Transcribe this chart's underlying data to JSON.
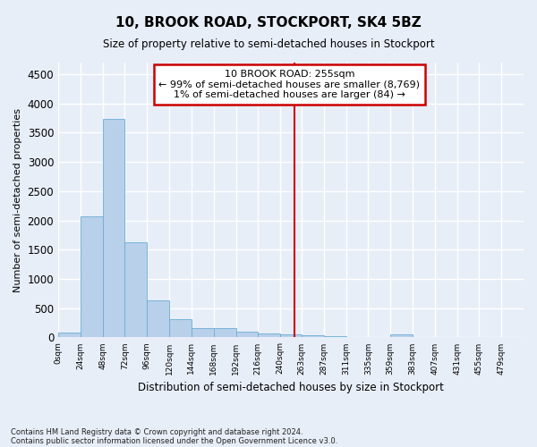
{
  "title": "10, BROOK ROAD, STOCKPORT, SK4 5BZ",
  "subtitle": "Size of property relative to semi-detached houses in Stockport",
  "xlabel": "Distribution of semi-detached houses by size in Stockport",
  "ylabel": "Number of semi-detached properties",
  "footnote1": "Contains HM Land Registry data © Crown copyright and database right 2024.",
  "footnote2": "Contains public sector information licensed under the Open Government Licence v3.0.",
  "bar_values": [
    90,
    2070,
    3730,
    1620,
    640,
    305,
    155,
    155,
    100,
    70,
    55,
    30,
    20,
    0,
    0,
    50,
    0,
    0,
    0,
    0
  ],
  "bin_edges": [
    0,
    24,
    48,
    72,
    96,
    120,
    144,
    168,
    192,
    216,
    240,
    263,
    287,
    311,
    335,
    359,
    383,
    407,
    431,
    455,
    479
  ],
  "bin_labels": [
    "0sqm",
    "24sqm",
    "48sqm",
    "72sqm",
    "96sqm",
    "120sqm",
    "144sqm",
    "168sqm",
    "192sqm",
    "216sqm",
    "240sqm",
    "263sqm",
    "287sqm",
    "311sqm",
    "335sqm",
    "359sqm",
    "383sqm",
    "407sqm",
    "431sqm",
    "455sqm",
    "479sqm"
  ],
  "bar_color": "#b8d0ea",
  "bar_edge_color": "#6aaed6",
  "vline_x": 255,
  "vline_color": "#cc0000",
  "annotation_title": "10 BROOK ROAD: 255sqm",
  "annotation_line1": "← 99% of semi-detached houses are smaller (8,769)",
  "annotation_line2": "1% of semi-detached houses are larger (84) →",
  "annotation_box_color": "#cc0000",
  "ylim": [
    0,
    4700
  ],
  "yticks": [
    0,
    500,
    1000,
    1500,
    2000,
    2500,
    3000,
    3500,
    4000,
    4500
  ],
  "background_color": "#e8eef8",
  "grid_color": "#ffffff"
}
